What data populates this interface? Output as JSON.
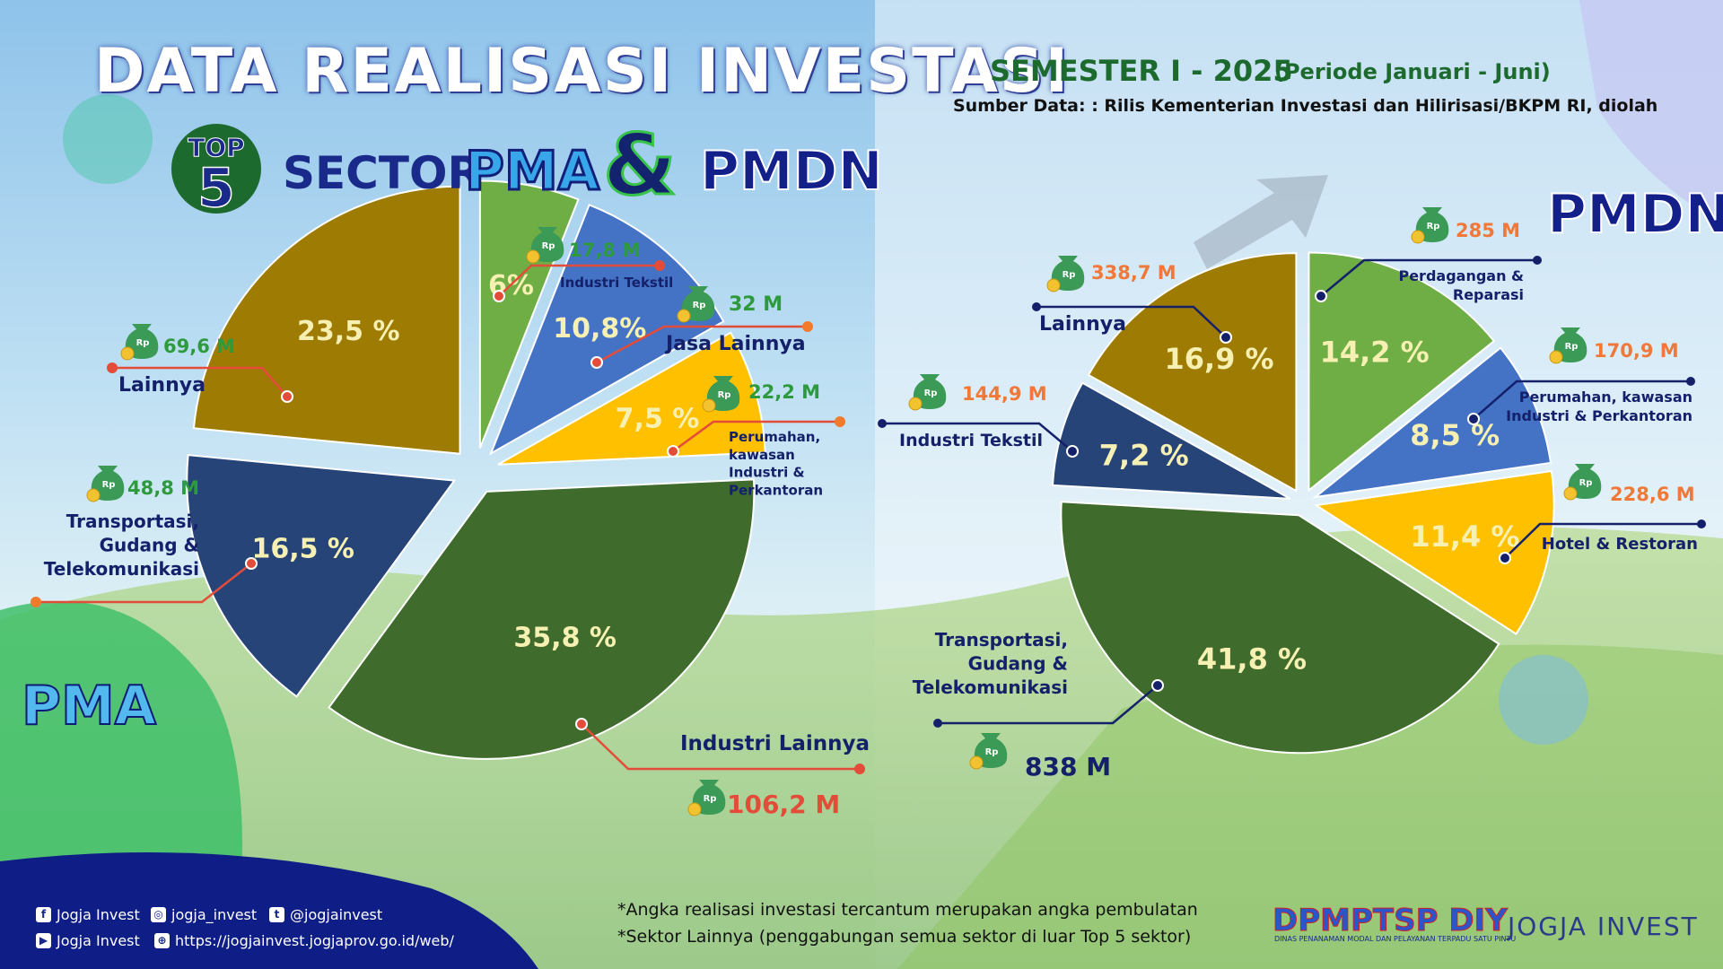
{
  "header": {
    "title": "DATA REALISASI INVESTASI",
    "top5_line1": "TOP",
    "top5_line2": "5",
    "sector": "SECTOR",
    "pma": "PMA",
    "amp": "&",
    "pmdn": "PMDN",
    "semester": "SEMESTER I - 2025",
    "periode": "(Periode Januari - Juni)",
    "sumber": "Sumber Data: : Rilis Kementerian Investasi dan Hilirisasi/BKPM RI, diolah"
  },
  "labels": {
    "pma": "PMA",
    "pmdn": "PMDN"
  },
  "chart_data": [
    {
      "type": "pie",
      "name": "PMA",
      "categories": [
        "Industri Tekstil",
        "Jasa Lainnya",
        "Perumahan, kawasan Industri & Perkantoran",
        "Industri Lainnya",
        "Transportasi, Gudang & Telekomunikasi",
        "Lainnya"
      ],
      "values": [
        6,
        10.8,
        7.5,
        35.8,
        16.5,
        23.5
      ],
      "percent_labels": [
        "6%",
        "10,8%",
        "7,5 %",
        "35,8 %",
        "16,5 %",
        "23,5  %"
      ],
      "amounts": [
        "17,8 M",
        "32 M",
        "22,2 M",
        "106,2 M",
        "48,8 M",
        "69,6 M"
      ],
      "category_labels": [
        "Industri Tekstil",
        "Jasa Lainnya",
        "Perumahan,|kawasan|Industri &|Perkantoran",
        "Industri Lainnya",
        "Transportasi,|Gudang &|Telekomunikasi",
        "Lainnya"
      ],
      "colors": [
        "#6fad45",
        "#4472c4",
        "#ffc000",
        "#3f6b2c",
        "#264478",
        "#9e7b02"
      ]
    },
    {
      "type": "pie",
      "name": "PMDN",
      "categories": [
        "Perdagangan & Reparasi",
        "Perumahan, kawasan Industri & Perkantoran",
        "Hotel & Restoran",
        "Transportasi, Gudang & Telekomunikasi",
        "Industri Tekstil",
        "Lainnya"
      ],
      "values": [
        14.2,
        8.5,
        11.4,
        41.8,
        7.2,
        16.9
      ],
      "percent_labels": [
        "14,2 %",
        "8,5  %",
        "11,4 %",
        "41,8 %",
        "7,2  %",
        "16,9 %"
      ],
      "amounts": [
        "285 M",
        "170,9 M",
        "228,6 M",
        "838 M",
        "144,9 M",
        "338,7 M"
      ],
      "category_labels": [
        "Perdagangan &|Reparasi",
        "Perumahan, kawasan|Industri & Perkantoran",
        "Hotel & Restoran",
        "Transportasi,|Gudang &|Telekomunikasi",
        "Industri Tekstil",
        "Lainnya"
      ],
      "colors": [
        "#6fad45",
        "#4472c4",
        "#ffc000",
        "#3f6b2c",
        "#264478",
        "#9e7b02"
      ]
    }
  ],
  "icon": {
    "name": "money-bag-icon",
    "text": "Rp"
  },
  "notes": {
    "n1": "*Angka realisasi investasi tercantum merupakan angka pembulatan",
    "n2": "*Sektor Lainnya (penggabungan semua sektor di luar Top 5 sektor)"
  },
  "social": {
    "facebook": "Jogja Invest",
    "instagram": "jogja_invest",
    "twitter": "@jogjainvest",
    "youtube": "Jogja Invest",
    "web": "https://jogjainvest.jogjaprov.go.id/web/",
    "facebook_icon": "f",
    "instagram_icon": "◎",
    "twitter_icon": "t",
    "youtube_icon": "▶",
    "web_icon": "⊕"
  },
  "footer_logos": {
    "dpmptsp": "DPMPTSP DIY",
    "dpmptsp_sub": "DINAS PENANAMAN MODAL DAN PELAYANAN TERPADU SATU PINTU",
    "jogja_invest": "JOGJA INVEST"
  }
}
